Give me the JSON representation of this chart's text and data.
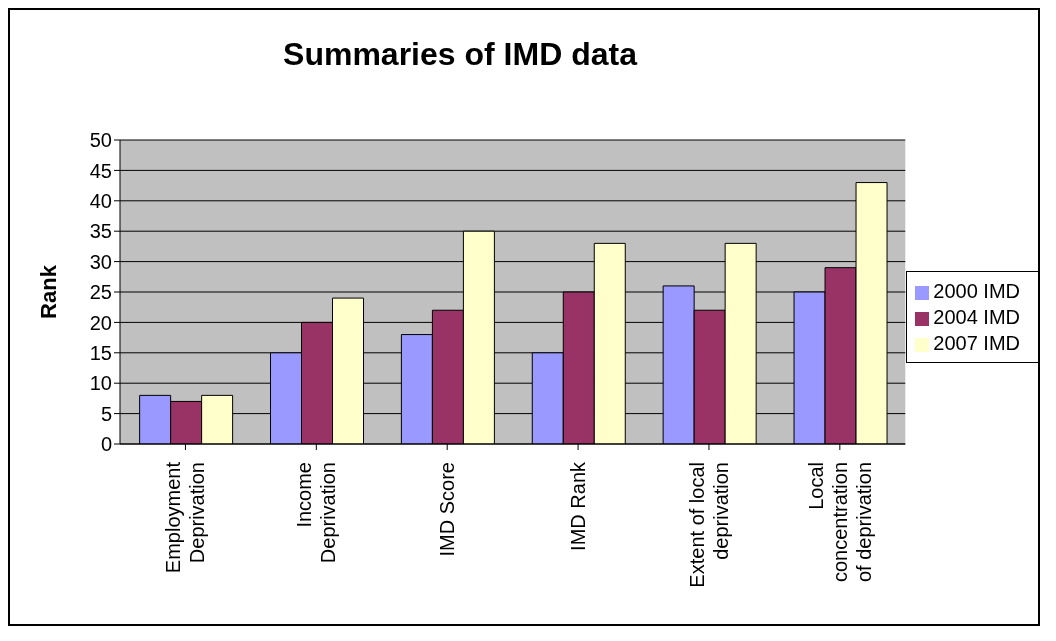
{
  "chart_data": {
    "type": "bar",
    "title": "Summaries of IMD data",
    "ylabel": "Rank",
    "categories": [
      "Employment Deprivation",
      "Income Deprivation",
      "IMD Score",
      "IMD Rank",
      "Extent of local deprivation",
      "Local concentration of deprivation"
    ],
    "series": [
      {
        "name": "2000 IMD",
        "color": "#9999ff",
        "values": [
          8,
          15,
          18,
          15,
          26,
          25
        ]
      },
      {
        "name": "2004 IMD",
        "color": "#993366",
        "values": [
          7,
          20,
          22,
          25,
          22,
          29
        ]
      },
      {
        "name": "2007 IMD",
        "color": "#ffffcc",
        "values": [
          8,
          24,
          35,
          33,
          33,
          43
        ]
      }
    ],
    "ylim": [
      0,
      50
    ],
    "yticks": [
      0,
      5,
      10,
      15,
      20,
      25,
      30,
      35,
      40,
      45,
      50
    ],
    "grid": "y",
    "legend": "right"
  }
}
